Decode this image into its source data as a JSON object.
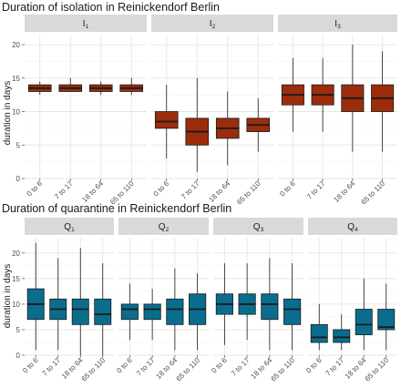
{
  "chart_data": [
    {
      "type": "boxplot",
      "title": "Duration of isolation in Reinickendorf Berlin",
      "ylabel": "duration in days",
      "xlabel": "",
      "ylim": [
        0,
        21.5
      ],
      "yticks": [
        0,
        5,
        10,
        15,
        20
      ],
      "grid": true,
      "fill_color": "#9b2d0d",
      "categories": [
        "0 to 6",
        "7 to 17",
        "18 to 64",
        "65 to 110"
      ],
      "facets": [
        {
          "label_main": "I",
          "label_sub": "1",
          "boxes": [
            {
              "min": 12.5,
              "q1": 13,
              "median": 13.5,
              "q3": 14,
              "max": 14.5
            },
            {
              "min": 13,
              "q1": 13,
              "median": 13.5,
              "q3": 14,
              "max": 15
            },
            {
              "min": 12.5,
              "q1": 13,
              "median": 13.5,
              "q3": 14,
              "max": 14.5
            },
            {
              "min": 12.5,
              "q1": 13,
              "median": 13.5,
              "q3": 14,
              "max": 15
            }
          ]
        },
        {
          "label_main": "I",
          "label_sub": "2",
          "boxes": [
            {
              "min": 3,
              "q1": 7.5,
              "median": 8.5,
              "q3": 10,
              "max": 14
            },
            {
              "min": 1,
              "q1": 5,
              "median": 7,
              "q3": 9,
              "max": 15
            },
            {
              "min": 2,
              "q1": 6,
              "median": 7.5,
              "q3": 9,
              "max": 13
            },
            {
              "min": 4,
              "q1": 7,
              "median": 8,
              "q3": 9,
              "max": 12
            }
          ]
        },
        {
          "label_main": "I",
          "label_sub": "3",
          "boxes": [
            {
              "min": 7,
              "q1": 11,
              "median": 12.5,
              "q3": 14,
              "max": 18
            },
            {
              "min": 7,
              "q1": 11,
              "median": 12.5,
              "q3": 14,
              "max": 18
            },
            {
              "min": 4,
              "q1": 10,
              "median": 12,
              "q3": 14,
              "max": 20
            },
            {
              "min": 4,
              "q1": 10,
              "median": 12,
              "q3": 14,
              "max": 19
            }
          ]
        }
      ]
    },
    {
      "type": "boxplot",
      "title": "Duration of quarantine in Reinickendorf Berlin",
      "ylabel": "duration in days",
      "xlabel": "",
      "ylim": [
        0,
        23
      ],
      "yticks": [
        0,
        5,
        10,
        15,
        20
      ],
      "grid": true,
      "fill_color": "#0b6d8e",
      "categories": [
        "0 to 6",
        "7 to 17",
        "18 to 64",
        "65 to 110"
      ],
      "facets": [
        {
          "label_main": "Q",
          "label_sub": "1",
          "boxes": [
            {
              "min": 1,
              "q1": 7,
              "median": 10,
              "q3": 13,
              "max": 22
            },
            {
              "min": 1,
              "q1": 7,
              "median": 9,
              "q3": 11,
              "max": 19
            },
            {
              "min": 0,
              "q1": 6,
              "median": 9,
              "q3": 11,
              "max": 21
            },
            {
              "min": 0,
              "q1": 6,
              "median": 8,
              "q3": 11,
              "max": 18
            }
          ]
        },
        {
          "label_main": "Q",
          "label_sub": "2",
          "boxes": [
            {
              "min": 3,
              "q1": 7,
              "median": 9,
              "q3": 10,
              "max": 14
            },
            {
              "min": 3,
              "q1": 7,
              "median": 9,
              "q3": 10,
              "max": 13
            },
            {
              "min": 1,
              "q1": 6,
              "median": 9,
              "q3": 11,
              "max": 17
            },
            {
              "min": 1,
              "q1": 6,
              "median": 9,
              "q3": 12,
              "max": 16
            }
          ]
        },
        {
          "label_main": "Q",
          "label_sub": "3",
          "boxes": [
            {
              "min": 2,
              "q1": 8,
              "median": 10,
              "q3": 12,
              "max": 18
            },
            {
              "min": 3,
              "q1": 8,
              "median": 10,
              "q3": 12,
              "max": 18
            },
            {
              "min": 1,
              "q1": 7,
              "median": 10,
              "q3": 12,
              "max": 19
            },
            {
              "min": 1,
              "q1": 6,
              "median": 9,
              "q3": 11,
              "max": 18
            }
          ]
        },
        {
          "label_main": "Q",
          "label_sub": "4",
          "boxes": [
            {
              "min": 1,
              "q1": 2.5,
              "median": 3.5,
              "q3": 6,
              "max": 10
            },
            {
              "min": 1,
              "q1": 2.5,
              "median": 3.5,
              "q3": 5,
              "max": 8
            },
            {
              "min": 1,
              "q1": 4,
              "median": 6,
              "q3": 9,
              "max": 15
            },
            {
              "min": 1,
              "q1": 5,
              "median": 5.5,
              "q3": 9,
              "max": 14
            }
          ]
        }
      ]
    }
  ]
}
